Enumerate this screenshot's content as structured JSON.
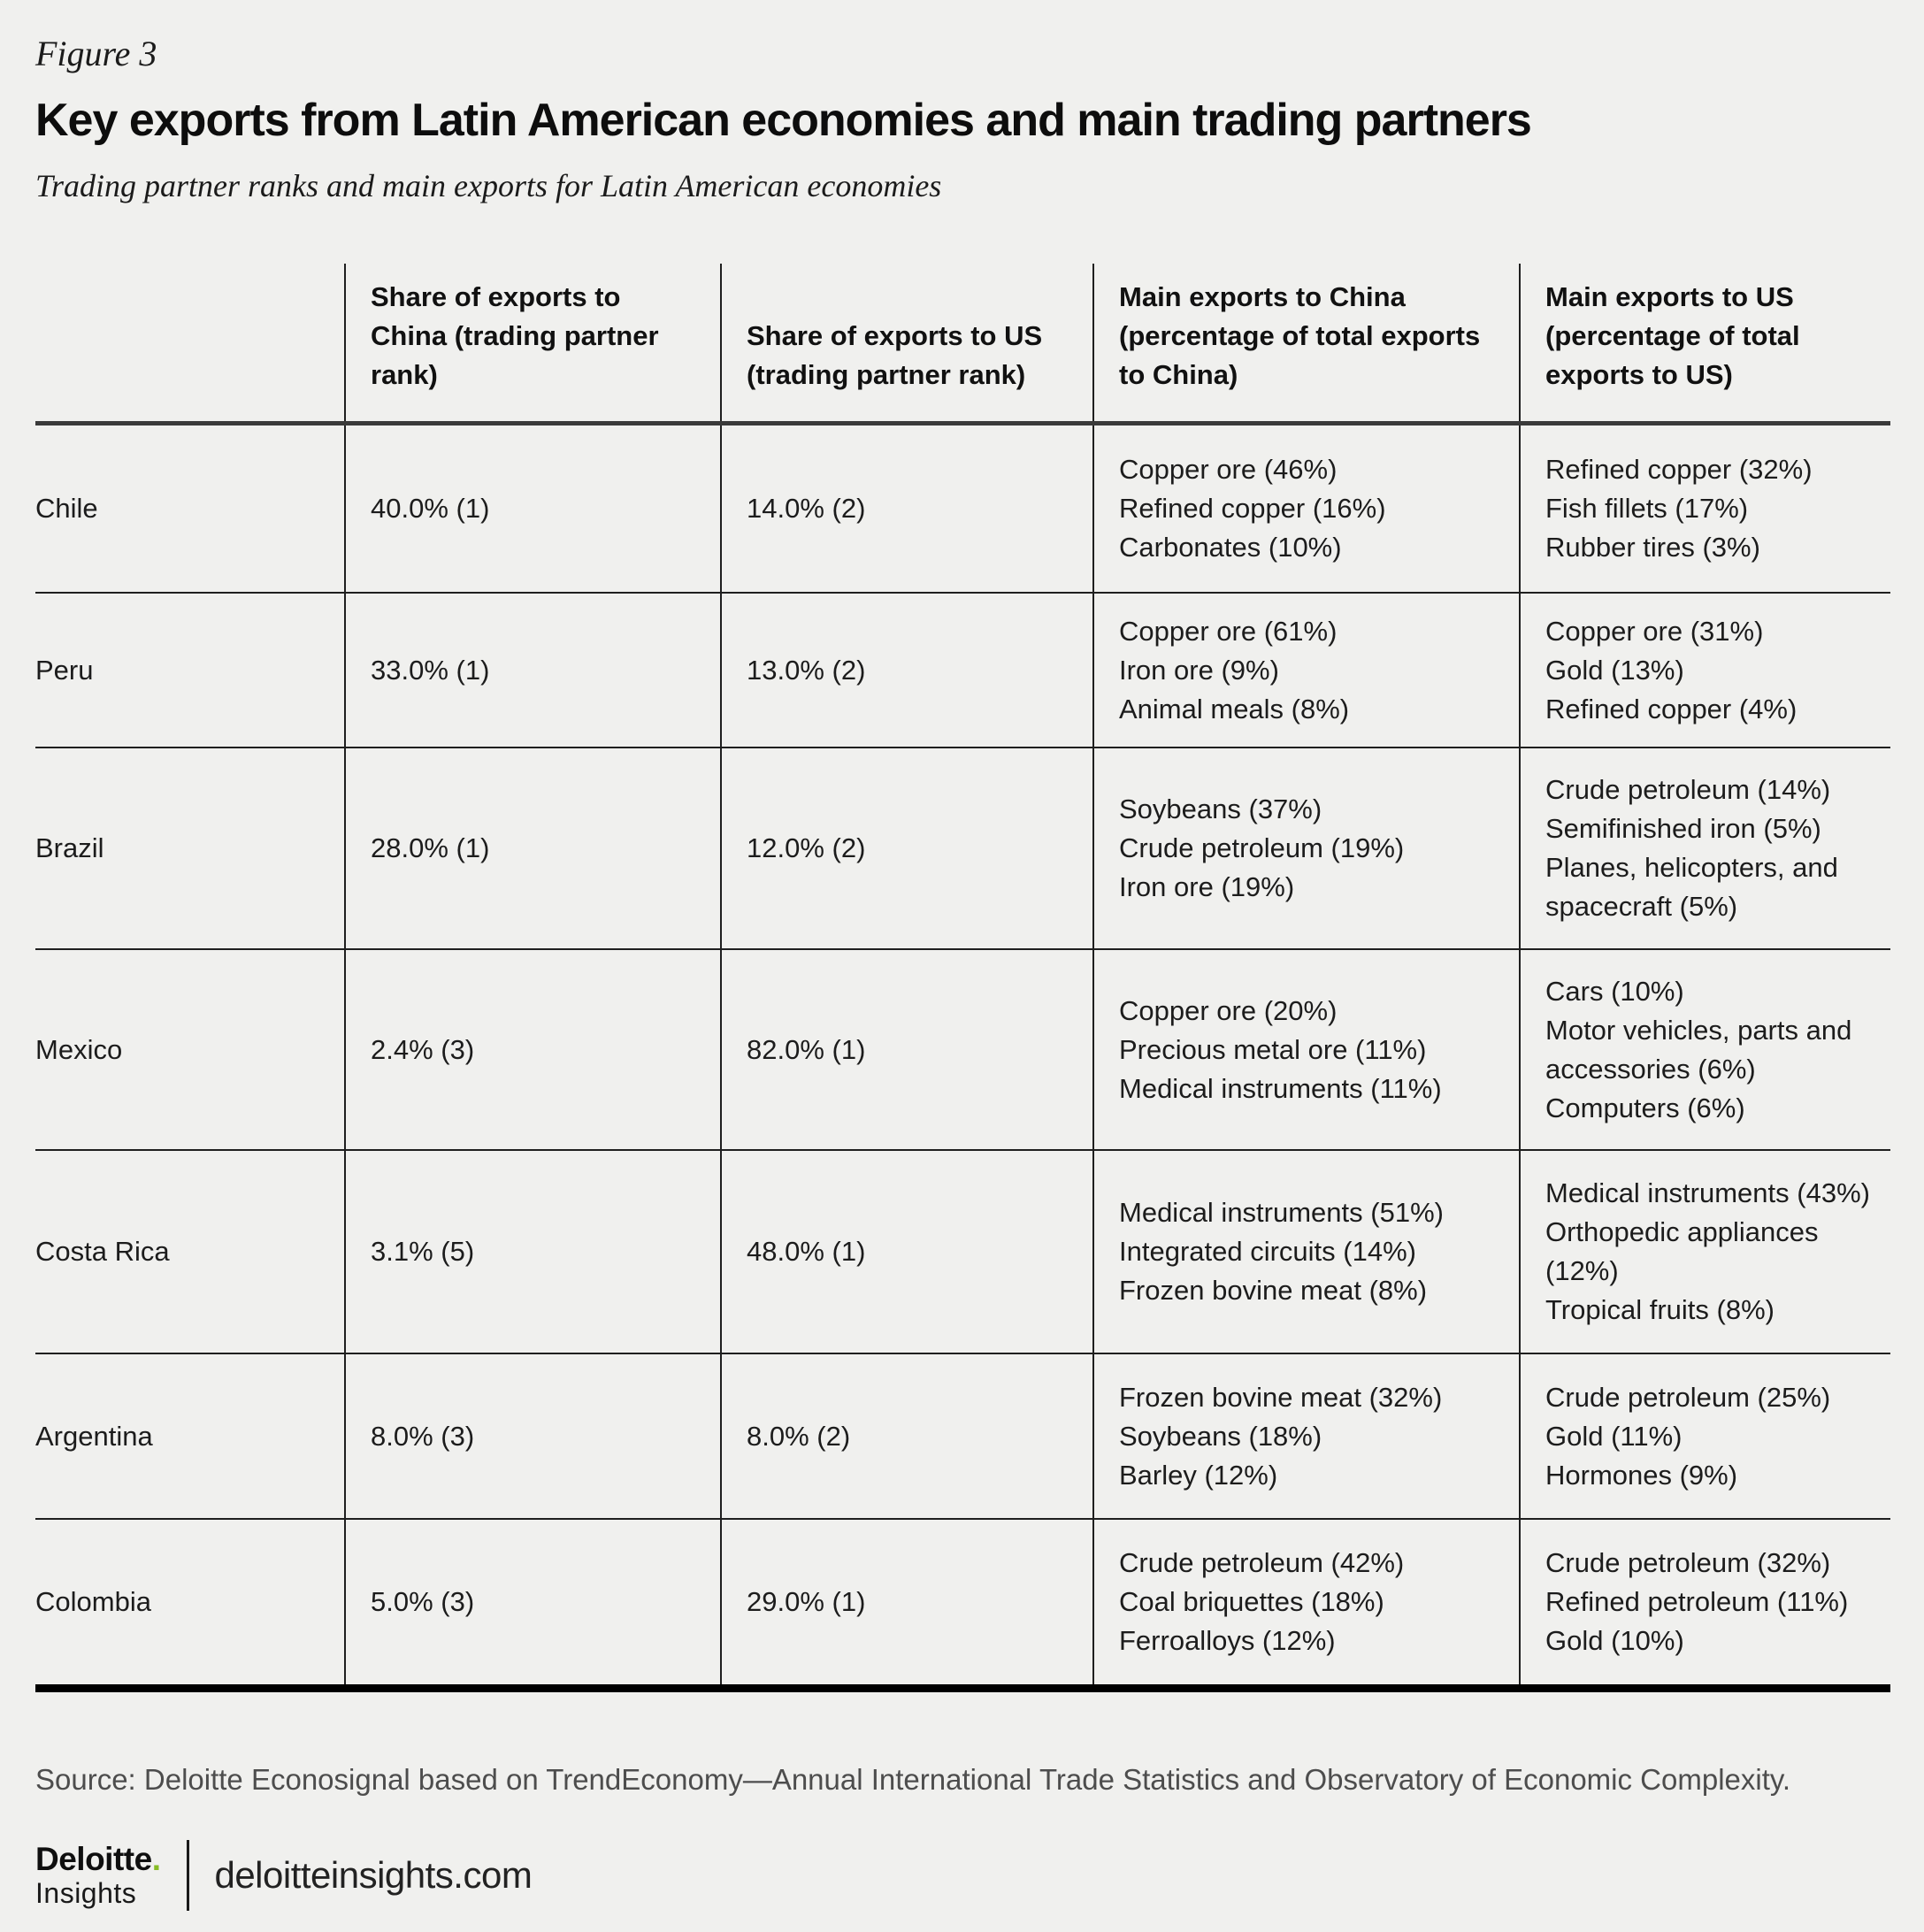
{
  "figure": {
    "label": "Figure 3",
    "title": "Key exports from Latin American economies and main trading partners",
    "subtitle": "Trading partner ranks and main exports for Latin American economies"
  },
  "chart_data": {
    "type": "table",
    "columns": [
      "",
      "Share of exports to China (trading partner rank)",
      "Share of exports to US (trading partner rank)",
      "Main exports to China (percentage of total exports to China)",
      "Main exports to US (percentage of total exports to US)"
    ],
    "rows": [
      {
        "country": "Chile",
        "share_china": "40.0% (1)",
        "share_us": "14.0% (2)",
        "main_china": [
          "Copper ore (46%)",
          "Refined copper (16%)",
          "Carbonates (10%)"
        ],
        "main_us": [
          "Refined copper (32%)",
          "Fish fillets (17%)",
          "Rubber tires (3%)"
        ]
      },
      {
        "country": "Peru",
        "share_china": "33.0% (1)",
        "share_us": "13.0% (2)",
        "main_china": [
          "Copper ore (61%)",
          "Iron ore (9%)",
          "Animal meals (8%)"
        ],
        "main_us": [
          "Copper ore (31%)",
          "Gold (13%)",
          "Refined copper (4%)"
        ]
      },
      {
        "country": "Brazil",
        "share_china": "28.0% (1)",
        "share_us": "12.0% (2)",
        "main_china": [
          "Soybeans (37%)",
          "Crude petroleum (19%)",
          "Iron ore (19%)"
        ],
        "main_us": [
          "Crude petroleum (14%)",
          "Semifinished iron (5%)",
          "Planes, helicopters, and spacecraft (5%)"
        ]
      },
      {
        "country": "Mexico",
        "share_china": "2.4% (3)",
        "share_us": "82.0% (1)",
        "main_china": [
          "Copper ore (20%)",
          "Precious metal ore (11%)",
          "Medical instruments (11%)"
        ],
        "main_us": [
          "Cars (10%)",
          "Motor vehicles, parts and accessories (6%)",
          "Computers (6%)"
        ]
      },
      {
        "country": "Costa Rica",
        "share_china": "3.1% (5)",
        "share_us": "48.0% (1)",
        "main_china": [
          "Medical instruments (51%)",
          "Integrated circuits (14%)",
          "Frozen bovine meat (8%)"
        ],
        "main_us": [
          "Medical instruments (43%)",
          "Orthopedic appliances (12%)",
          "Tropical fruits (8%)"
        ]
      },
      {
        "country": "Argentina",
        "share_china": "8.0% (3)",
        "share_us": "8.0% (2)",
        "main_china": [
          "Frozen bovine meat (32%)",
          "Soybeans (18%)",
          "Barley (12%)"
        ],
        "main_us": [
          "Crude petroleum (25%)",
          "Gold (11%)",
          "Hormones (9%)"
        ]
      },
      {
        "country": "Colombia",
        "share_china": "5.0% (3)",
        "share_us": "29.0% (1)",
        "main_china": [
          "Crude petroleum (42%)",
          "Coal briquettes (18%)",
          "Ferroalloys (12%)"
        ],
        "main_us": [
          "Crude petroleum (32%)",
          "Refined petroleum (11%)",
          "Gold (10%)"
        ]
      }
    ],
    "layout": {
      "grid": "ruled table, vertical column separators, thick bottom rule",
      "legend": "none"
    }
  },
  "footer": {
    "source": "Source: Deloitte Econosignal based on TrendEconomy—Annual International Trade Statistics and Observatory of Economic Complexity.",
    "logo": {
      "brand": "Deloitte",
      "brand_dot": ".",
      "sub": "Insights",
      "site": "deloitteinsights.com"
    }
  },
  "colors": {
    "background": "#f0f0ee",
    "text": "#1c1c1c",
    "rule": "#1f1f1f",
    "accent_green": "#86bc25"
  }
}
